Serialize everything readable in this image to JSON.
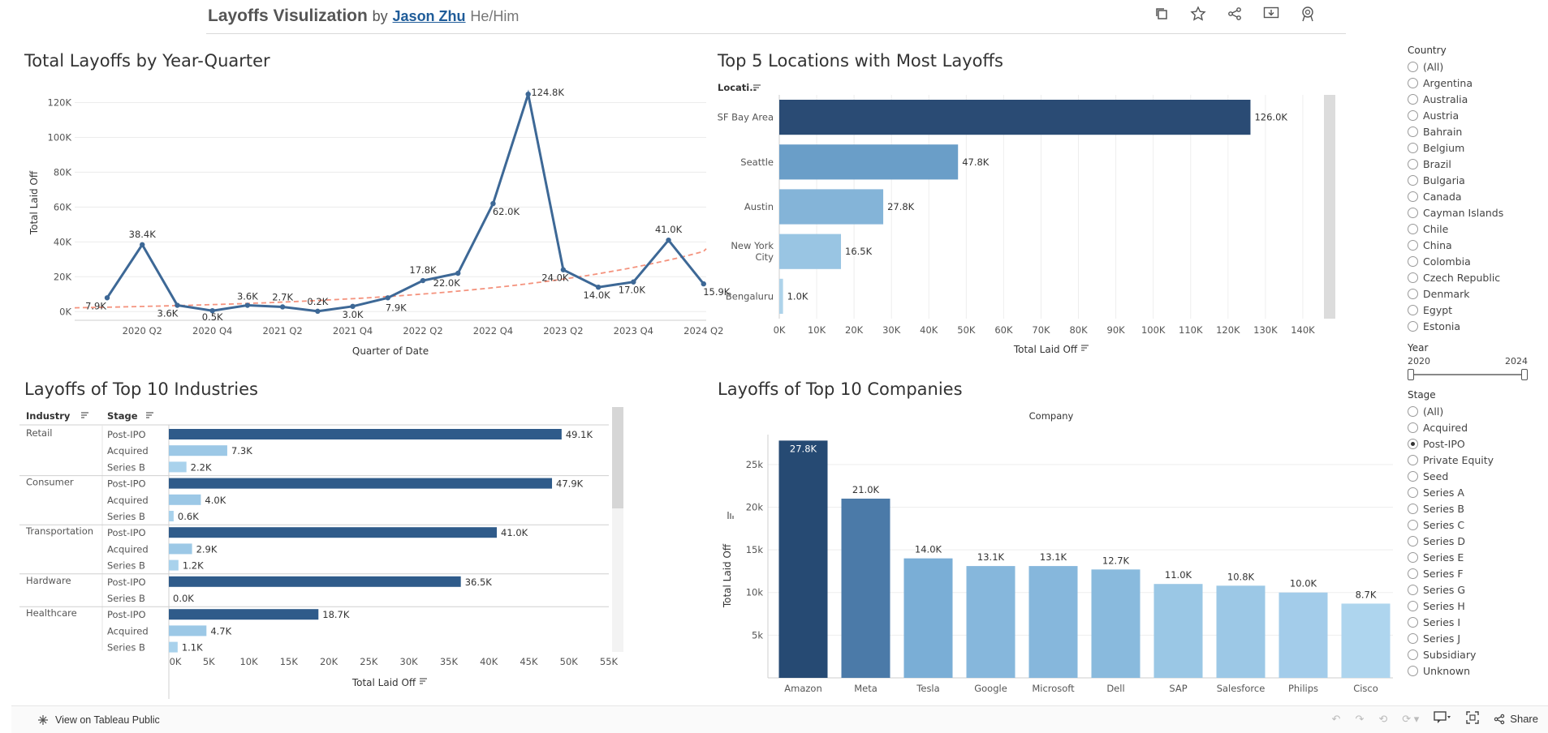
{
  "header": {
    "title": "Layoffs Visulization",
    "by": "by",
    "author": "Jason Zhu",
    "pronouns": "He/Him",
    "icons": [
      "duplicate-icon",
      "star-icon",
      "share-icon",
      "download-icon",
      "badge-icon"
    ]
  },
  "filters": {
    "country": {
      "title": "Country",
      "options": [
        "(All)",
        "Argentina",
        "Australia",
        "Austria",
        "Bahrain",
        "Belgium",
        "Brazil",
        "Bulgaria",
        "Canada",
        "Cayman Islands",
        "Chile",
        "China",
        "Colombia",
        "Czech Republic",
        "Denmark",
        "Egypt",
        "Estonia"
      ]
    },
    "year": {
      "title": "Year",
      "min": "2020",
      "max": "2024"
    },
    "stage": {
      "title": "Stage",
      "selected": "Post-IPO",
      "options": [
        "(All)",
        "Acquired",
        "Post-IPO",
        "Private Equity",
        "Seed",
        "Series A",
        "Series B",
        "Series C",
        "Series D",
        "Series E",
        "Series F",
        "Series G",
        "Series H",
        "Series I",
        "Series J",
        "Subsidiary",
        "Unknown"
      ]
    }
  },
  "footer": {
    "view_label": "View on Tableau Public",
    "share_label": "Share"
  },
  "chart_data": [
    {
      "type": "line",
      "title": "Total Layoffs by Year-Quarter",
      "xlabel": "Quarter of Date",
      "ylabel": "Total Laid Off",
      "ylim": [
        -5000,
        130000
      ],
      "y_ticks": [
        0,
        20000,
        40000,
        60000,
        80000,
        100000,
        120000
      ],
      "y_tick_labels": [
        "0K",
        "20K",
        "40K",
        "60K",
        "80K",
        "100K",
        "120K"
      ],
      "x_tick_labels": [
        "2020 Q2",
        "2020 Q4",
        "2021 Q2",
        "2021 Q4",
        "2022 Q2",
        "2022 Q4",
        "2023 Q2",
        "2023 Q4",
        "2024 Q2"
      ],
      "x": [
        "2020 Q1",
        "2020 Q2",
        "2020 Q3",
        "2020 Q4",
        "2021 Q1",
        "2021 Q2",
        "2021 Q3",
        "2021 Q4",
        "2022 Q1",
        "2022 Q2",
        "2022 Q3",
        "2022 Q4",
        "2023 Q1",
        "2023 Q2",
        "2023 Q3",
        "2023 Q4",
        "2024 Q1",
        "2024 Q2"
      ],
      "values": [
        7900,
        38400,
        3600,
        500,
        3600,
        2700,
        200,
        3000,
        7900,
        17800,
        22000,
        62000,
        124800,
        24000,
        14000,
        17000,
        41000,
        15900
      ],
      "labels": [
        "7.9K",
        "38.4K",
        "3.6K",
        "0.5K",
        "3.6K",
        "2.7K",
        "0.2K",
        "3.0K",
        "7.9K",
        "17.8K",
        "22.0K",
        "62.0K",
        "124.8K",
        "24.0K",
        "14.0K",
        "17.0K",
        "41.0K",
        "15.9K"
      ],
      "trend": "exponential",
      "colors": {
        "line": "#3d6896",
        "trend": "#f4937e"
      },
      "grid": true
    },
    {
      "type": "bar",
      "orientation": "horizontal",
      "title": "Top 5 Locations with Most Layoffs",
      "category_header": "Locati..",
      "xlabel": "Total Laid Off",
      "categories": [
        "SF Bay Area",
        "Seattle",
        "Austin",
        "New York City",
        "Bengaluru"
      ],
      "category_lines": [
        [
          "SF Bay Area"
        ],
        [
          "Seattle"
        ],
        [
          "Austin"
        ],
        [
          "New York",
          "City"
        ],
        [
          "Bengaluru"
        ]
      ],
      "values": [
        126000,
        47800,
        27800,
        16500,
        1000
      ],
      "labels": [
        "126.0K",
        "47.8K",
        "27.8K",
        "16.5K",
        "1.0K"
      ],
      "colors": [
        "#2a4b74",
        "#6a9ec8",
        "#84b4d8",
        "#99c5e3",
        "#aed3ea"
      ],
      "xlim": [
        0,
        145000
      ],
      "x_ticks": [
        0,
        10000,
        20000,
        30000,
        40000,
        50000,
        60000,
        70000,
        80000,
        90000,
        100000,
        110000,
        120000,
        130000,
        140000
      ],
      "x_tick_labels": [
        "0K",
        "10K",
        "20K",
        "30K",
        "40K",
        "50K",
        "60K",
        "70K",
        "80K",
        "90K",
        "100K",
        "110K",
        "120K",
        "130K",
        "140K"
      ],
      "grid": true
    },
    {
      "type": "bar",
      "orientation": "horizontal",
      "title": "Layoffs of Top 10 Industries",
      "row_headers": [
        "Industry",
        "Stage"
      ],
      "xlabel": "Total Laid Off",
      "groups": [
        {
          "industry": "Retail",
          "rows": [
            {
              "stage": "Post-IPO",
              "value": 49100,
              "label": "49.1K"
            },
            {
              "stage": "Acquired",
              "value": 7300,
              "label": "7.3K"
            },
            {
              "stage": "Series B",
              "value": 2200,
              "label": "2.2K"
            }
          ]
        },
        {
          "industry": "Consumer",
          "rows": [
            {
              "stage": "Post-IPO",
              "value": 47900,
              "label": "47.9K"
            },
            {
              "stage": "Acquired",
              "value": 4000,
              "label": "4.0K"
            },
            {
              "stage": "Series B",
              "value": 600,
              "label": "0.6K"
            }
          ]
        },
        {
          "industry": "Transportation",
          "rows": [
            {
              "stage": "Post-IPO",
              "value": 41000,
              "label": "41.0K"
            },
            {
              "stage": "Acquired",
              "value": 2900,
              "label": "2.9K"
            },
            {
              "stage": "Series B",
              "value": 1200,
              "label": "1.2K"
            }
          ]
        },
        {
          "industry": "Hardware",
          "rows": [
            {
              "stage": "Post-IPO",
              "value": 36500,
              "label": "36.5K"
            },
            {
              "stage": "Series B",
              "value": 0,
              "label": "0.0K"
            }
          ]
        },
        {
          "industry": "Healthcare",
          "rows": [
            {
              "stage": "Post-IPO",
              "value": 18700,
              "label": "18.7K"
            },
            {
              "stage": "Acquired",
              "value": 4700,
              "label": "4.7K"
            },
            {
              "stage": "Series B",
              "value": 1100,
              "label": "1.1K"
            }
          ]
        }
      ],
      "xlim": [
        0,
        55000
      ],
      "x_ticks": [
        0,
        5000,
        10000,
        15000,
        20000,
        25000,
        30000,
        35000,
        40000,
        45000,
        50000,
        55000
      ],
      "x_tick_labels": [
        "0K",
        "5K",
        "10K",
        "15K",
        "20K",
        "25K",
        "30K",
        "35K",
        "40K",
        "45K",
        "50K",
        "55K"
      ],
      "colors": {
        "Post-IPO": "#2f5b8a",
        "Acquired": "#9cc8e6",
        "Series B": "#a9d2ec"
      }
    },
    {
      "type": "bar",
      "title": "Layoffs of Top 10 Companies",
      "column_header": "Company",
      "ylabel": "Total Laid Off",
      "categories": [
        "Amazon",
        "Meta",
        "Tesla",
        "Google",
        "Microsoft",
        "Dell",
        "SAP",
        "Salesforce",
        "Philips",
        "Cisco"
      ],
      "values": [
        27800,
        21000,
        14000,
        13100,
        13100,
        12700,
        11000,
        10800,
        10000,
        8700
      ],
      "labels": [
        "27.8K",
        "21.0K",
        "14.0K",
        "13.1K",
        "13.1K",
        "12.7K",
        "11.0K",
        "10.8K",
        "10.0K",
        "8.7K"
      ],
      "colors": [
        "#264a73",
        "#4b7aa8",
        "#7aaed6",
        "#86b7dc",
        "#86b7dc",
        "#89badd",
        "#9ac7e5",
        "#9cc8e6",
        "#a3ccea",
        "#aed5ee"
      ],
      "ylim": [
        0,
        28500
      ],
      "y_ticks": [
        5000,
        10000,
        15000,
        20000,
        25000
      ],
      "y_tick_labels": [
        "5k",
        "10k",
        "15k",
        "20k",
        "25k"
      ],
      "grid": true
    }
  ]
}
